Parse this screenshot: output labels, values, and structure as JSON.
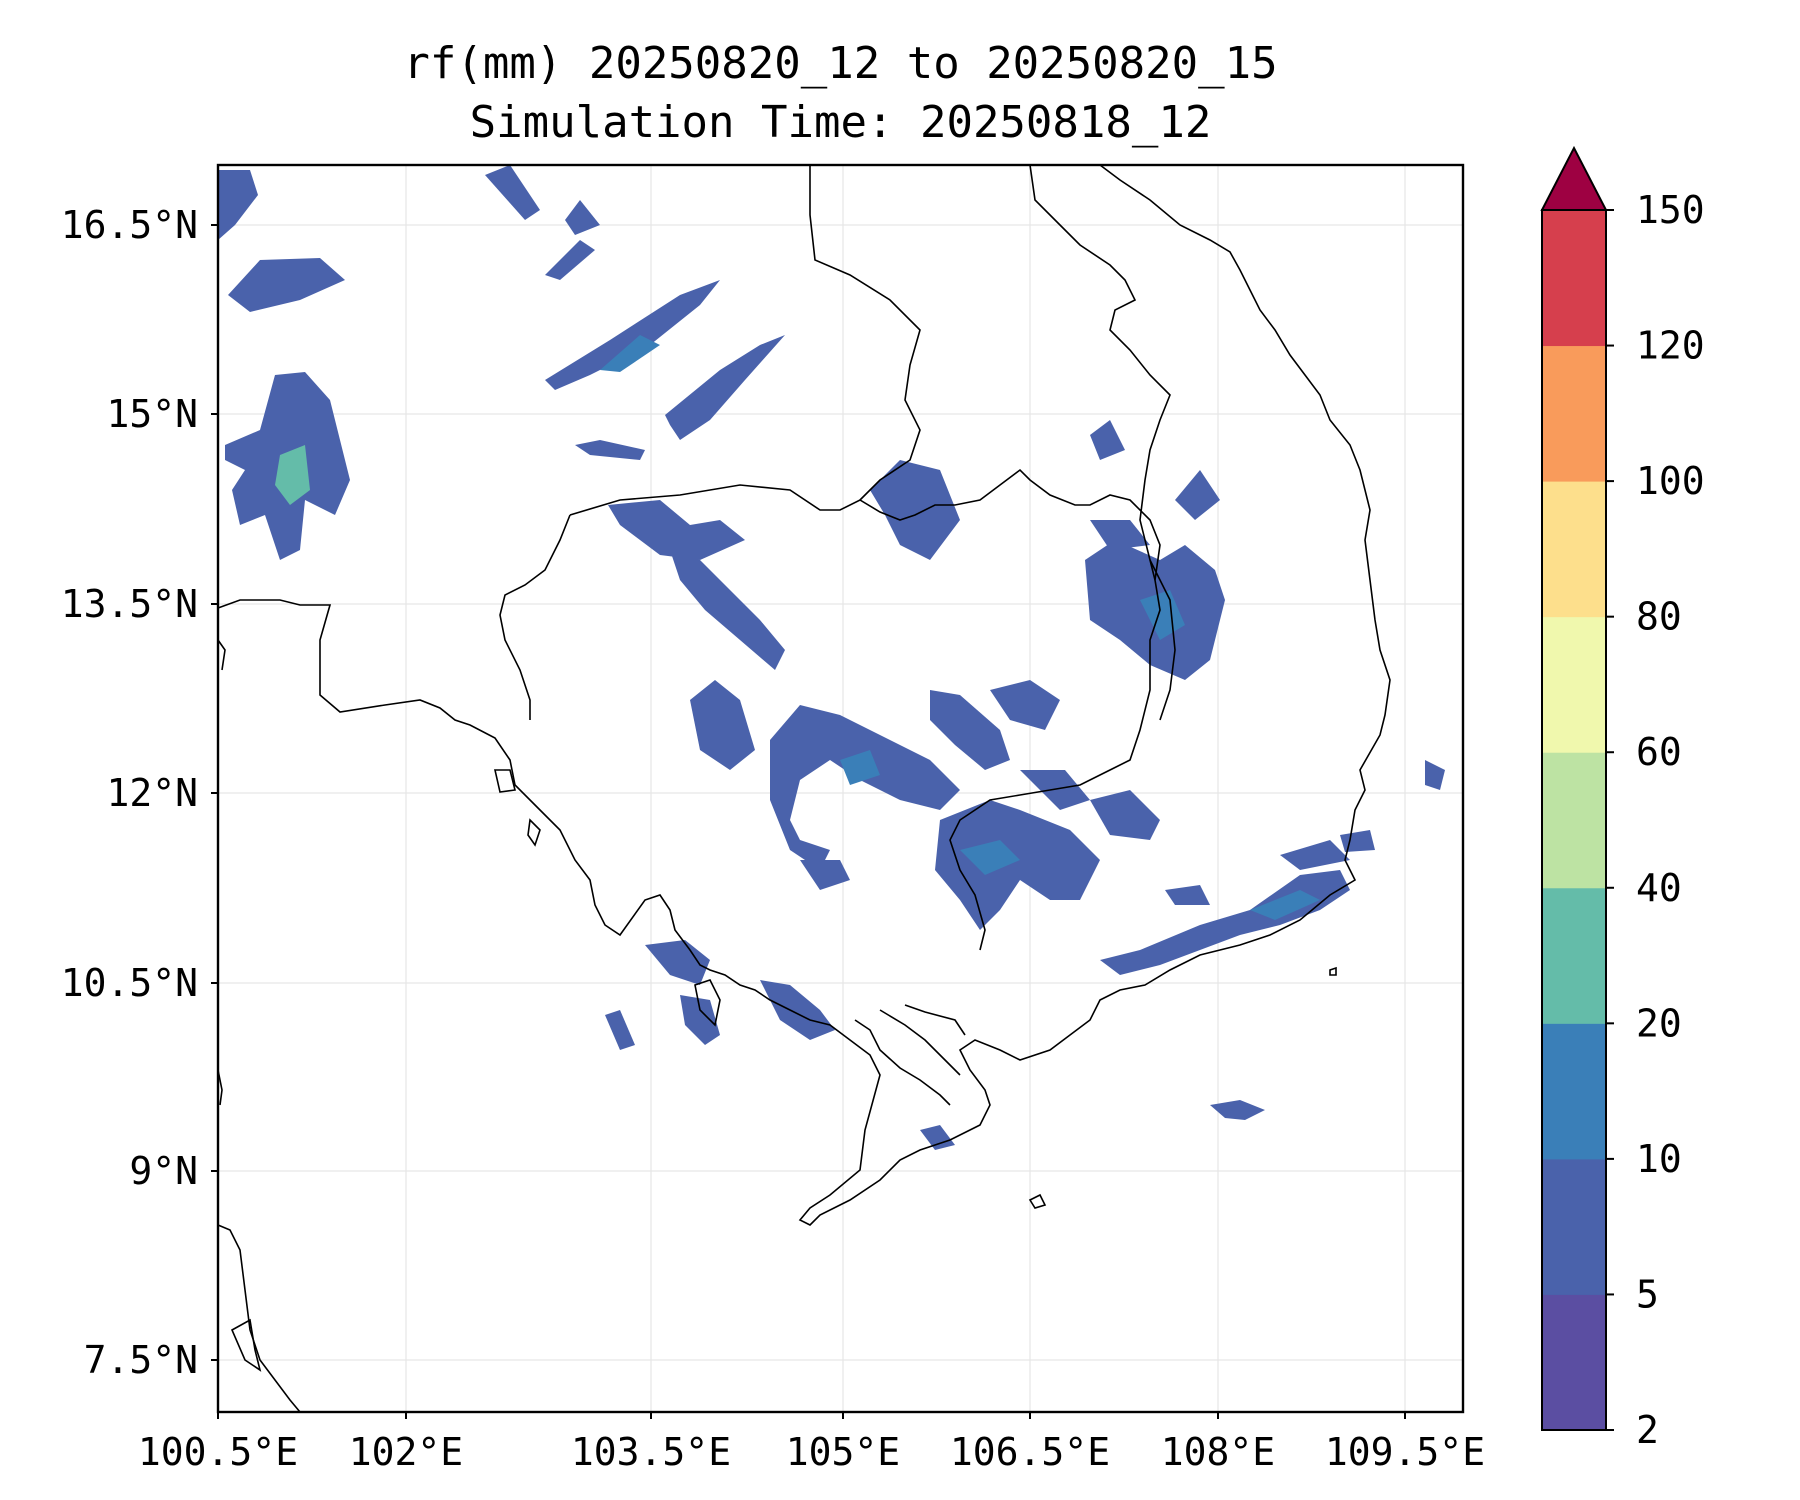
{
  "title": {
    "line1": "rf(mm) 20250820_12 to 20250820_15",
    "line2": "Simulation Time: 20250818_12"
  },
  "map": {
    "lon_ticks": [
      "100.5°E",
      "102°E",
      "103.5°E",
      "105°E",
      "106.5°E",
      "108°E",
      "109.5°E"
    ],
    "lat_ticks": [
      "16.5°N",
      "15°N",
      "13.5°N",
      "12°N",
      "10.5°N",
      "9°N",
      "7.5°N"
    ],
    "gridlines": true,
    "coastline_color": "#000000"
  },
  "colorbar": {
    "levels": [
      "2",
      "5",
      "10",
      "20",
      "40",
      "60",
      "80",
      "100",
      "120",
      "150"
    ],
    "colors": [
      "#5b4ea2",
      "#4a62ab",
      "#3a7fb8",
      "#64bca9",
      "#bde3a3",
      "#f0f8ad",
      "#fddf8c",
      "#f99b5b",
      "#d63f4d"
    ],
    "extend_color": "#9e0142",
    "extend": "max"
  }
}
